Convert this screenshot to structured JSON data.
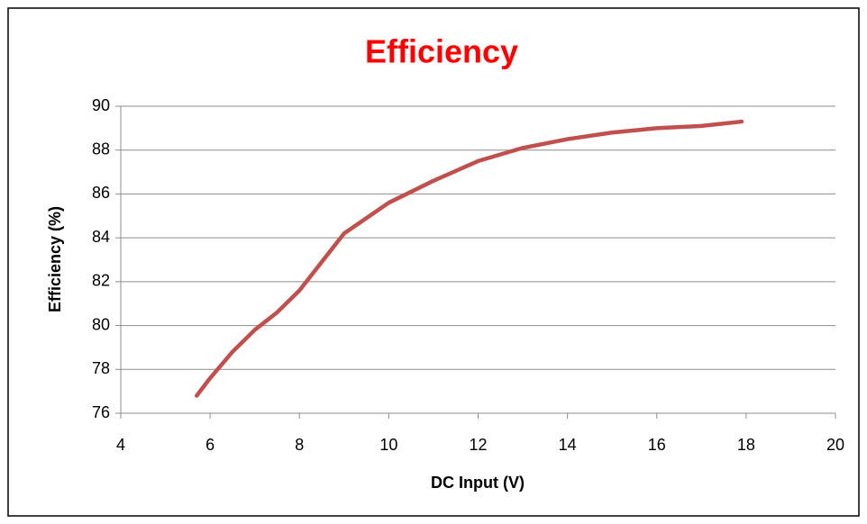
{
  "chart_data": {
    "type": "line",
    "title": "Efficiency",
    "xlabel": "DC Input (V)",
    "ylabel": "Efficiency (%)",
    "x": [
      5.7,
      6,
      6.5,
      7,
      7.5,
      8,
      8.5,
      9,
      9.5,
      10,
      11,
      12,
      13,
      14,
      15,
      16,
      17,
      17.9
    ],
    "series": [
      {
        "name": "Efficiency",
        "color": "#c0504d",
        "values": [
          76.8,
          77.6,
          78.8,
          79.8,
          80.6,
          81.6,
          82.9,
          84.2,
          84.9,
          85.6,
          86.6,
          87.5,
          88.1,
          88.5,
          88.8,
          89.0,
          89.1,
          89.3
        ]
      }
    ],
    "xlim": [
      4,
      20
    ],
    "xticks": [
      4,
      6,
      8,
      10,
      12,
      14,
      16,
      18,
      20
    ],
    "ylim": [
      76,
      90
    ],
    "yticks": [
      76,
      78,
      80,
      82,
      84,
      86,
      88,
      90
    ],
    "grid": true,
    "title_color": "#ff0000"
  }
}
